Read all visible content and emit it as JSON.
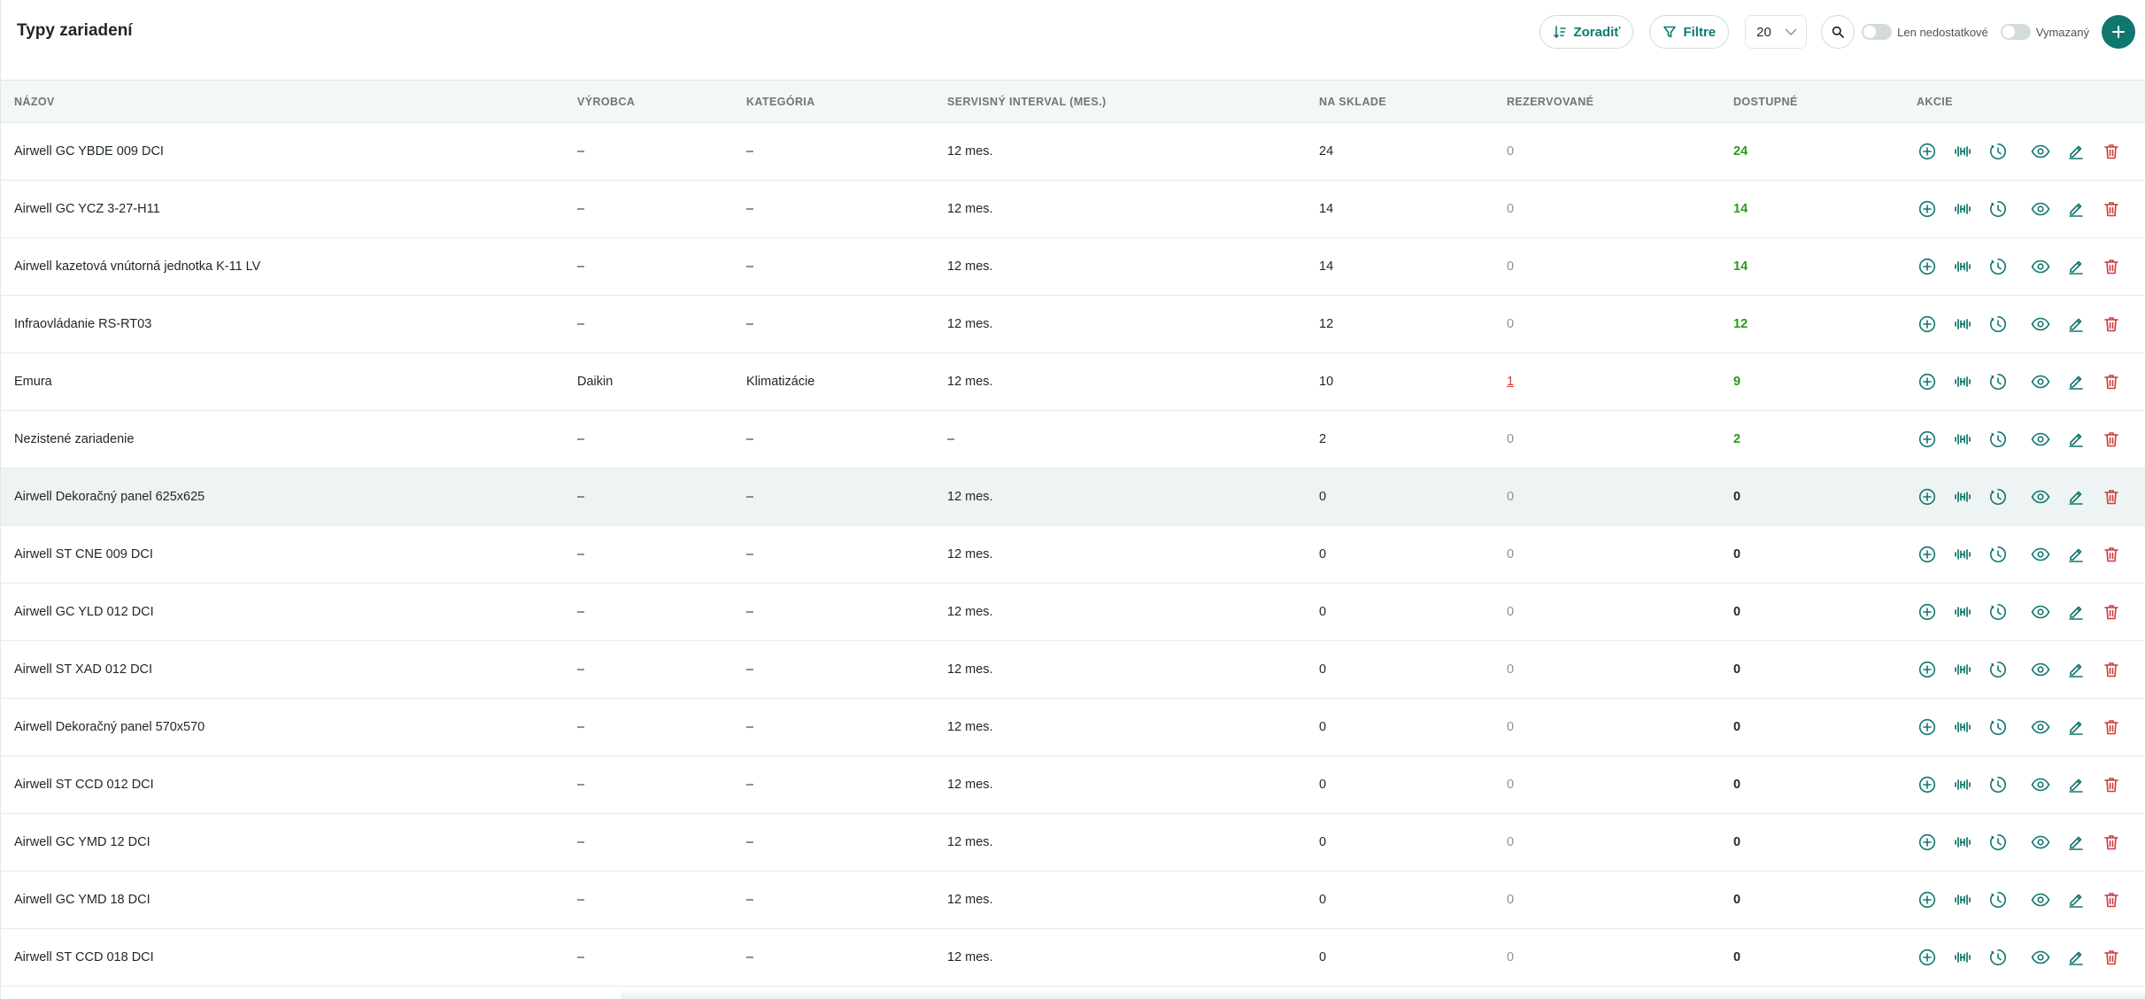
{
  "header": {
    "title": "Typy zariadení",
    "sort_label": "Zoradiť",
    "filter_label": "Filtre",
    "page_size": "20",
    "toggle_missing_label": "Len nedostatkové",
    "toggle_deleted_label": "Vymazaný"
  },
  "table": {
    "columns": [
      "NÁZOV",
      "VÝROBCA",
      "KATEGÓRIA",
      "SERVISNÝ INTERVAL (MES.)",
      "NA SKLADE",
      "REZERVOVANÉ",
      "DOSTUPNÉ",
      "AKCIE"
    ],
    "rows": [
      {
        "name": "Airwell GC YBDE 009 DCI",
        "maker": "–",
        "category": "–",
        "interval": "12 mes.",
        "stock": "24",
        "reserved": "0",
        "available": "24"
      },
      {
        "name": "Airwell GC YCZ 3-27-H11",
        "maker": "–",
        "category": "–",
        "interval": "12 mes.",
        "stock": "14",
        "reserved": "0",
        "available": "14"
      },
      {
        "name": "Airwell kazetová vnútorná jednotka K-11 LV",
        "maker": "–",
        "category": "–",
        "interval": "12 mes.",
        "stock": "14",
        "reserved": "0",
        "available": "14"
      },
      {
        "name": "Infraovládanie RS-RT03",
        "maker": "–",
        "category": "–",
        "interval": "12 mes.",
        "stock": "12",
        "reserved": "0",
        "available": "12"
      },
      {
        "name": "Emura",
        "maker": "Daikin",
        "category": "Klimatizácie",
        "interval": "12 mes.",
        "stock": "10",
        "reserved": "1",
        "available": "9"
      },
      {
        "name": "Nezistené zariadenie",
        "maker": "–",
        "category": "–",
        "interval": "–",
        "stock": "2",
        "reserved": "0",
        "available": "2"
      },
      {
        "name": "Airwell Dekoračný panel 625x625",
        "maker": "–",
        "category": "–",
        "interval": "12 mes.",
        "stock": "0",
        "reserved": "0",
        "available": "0"
      },
      {
        "name": "Airwell ST CNE 009 DCI",
        "maker": "–",
        "category": "–",
        "interval": "12 mes.",
        "stock": "0",
        "reserved": "0",
        "available": "0"
      },
      {
        "name": "Airwell GC YLD 012 DCI",
        "maker": "–",
        "category": "–",
        "interval": "12 mes.",
        "stock": "0",
        "reserved": "0",
        "available": "0"
      },
      {
        "name": "Airwell ST XAD 012 DCI",
        "maker": "–",
        "category": "–",
        "interval": "12 mes.",
        "stock": "0",
        "reserved": "0",
        "available": "0"
      },
      {
        "name": "Airwell Dekoračný panel 570x570",
        "maker": "–",
        "category": "–",
        "interval": "12 mes.",
        "stock": "0",
        "reserved": "0",
        "available": "0"
      },
      {
        "name": "Airwell ST CCD 012 DCI",
        "maker": "–",
        "category": "–",
        "interval": "12 mes.",
        "stock": "0",
        "reserved": "0",
        "available": "0"
      },
      {
        "name": "Airwell GC YMD 12 DCI",
        "maker": "–",
        "category": "–",
        "interval": "12 mes.",
        "stock": "0",
        "reserved": "0",
        "available": "0"
      },
      {
        "name": "Airwell GC YMD 18 DCI",
        "maker": "–",
        "category": "–",
        "interval": "12 mes.",
        "stock": "0",
        "reserved": "0",
        "available": "0"
      },
      {
        "name": "Airwell ST CCD 018 DCI",
        "maker": "–",
        "category": "–",
        "interval": "12 mes.",
        "stock": "0",
        "reserved": "0",
        "available": "0"
      }
    ]
  },
  "colors": {
    "accent": "#11766e",
    "available": "#2a9a1a",
    "danger": "#d03a3a",
    "warning_link": "#d03a3a"
  },
  "action_icons": [
    "add-circle-icon",
    "barbell-icon",
    "history-icon",
    "eye-icon",
    "edit-icon",
    "trash-icon"
  ]
}
